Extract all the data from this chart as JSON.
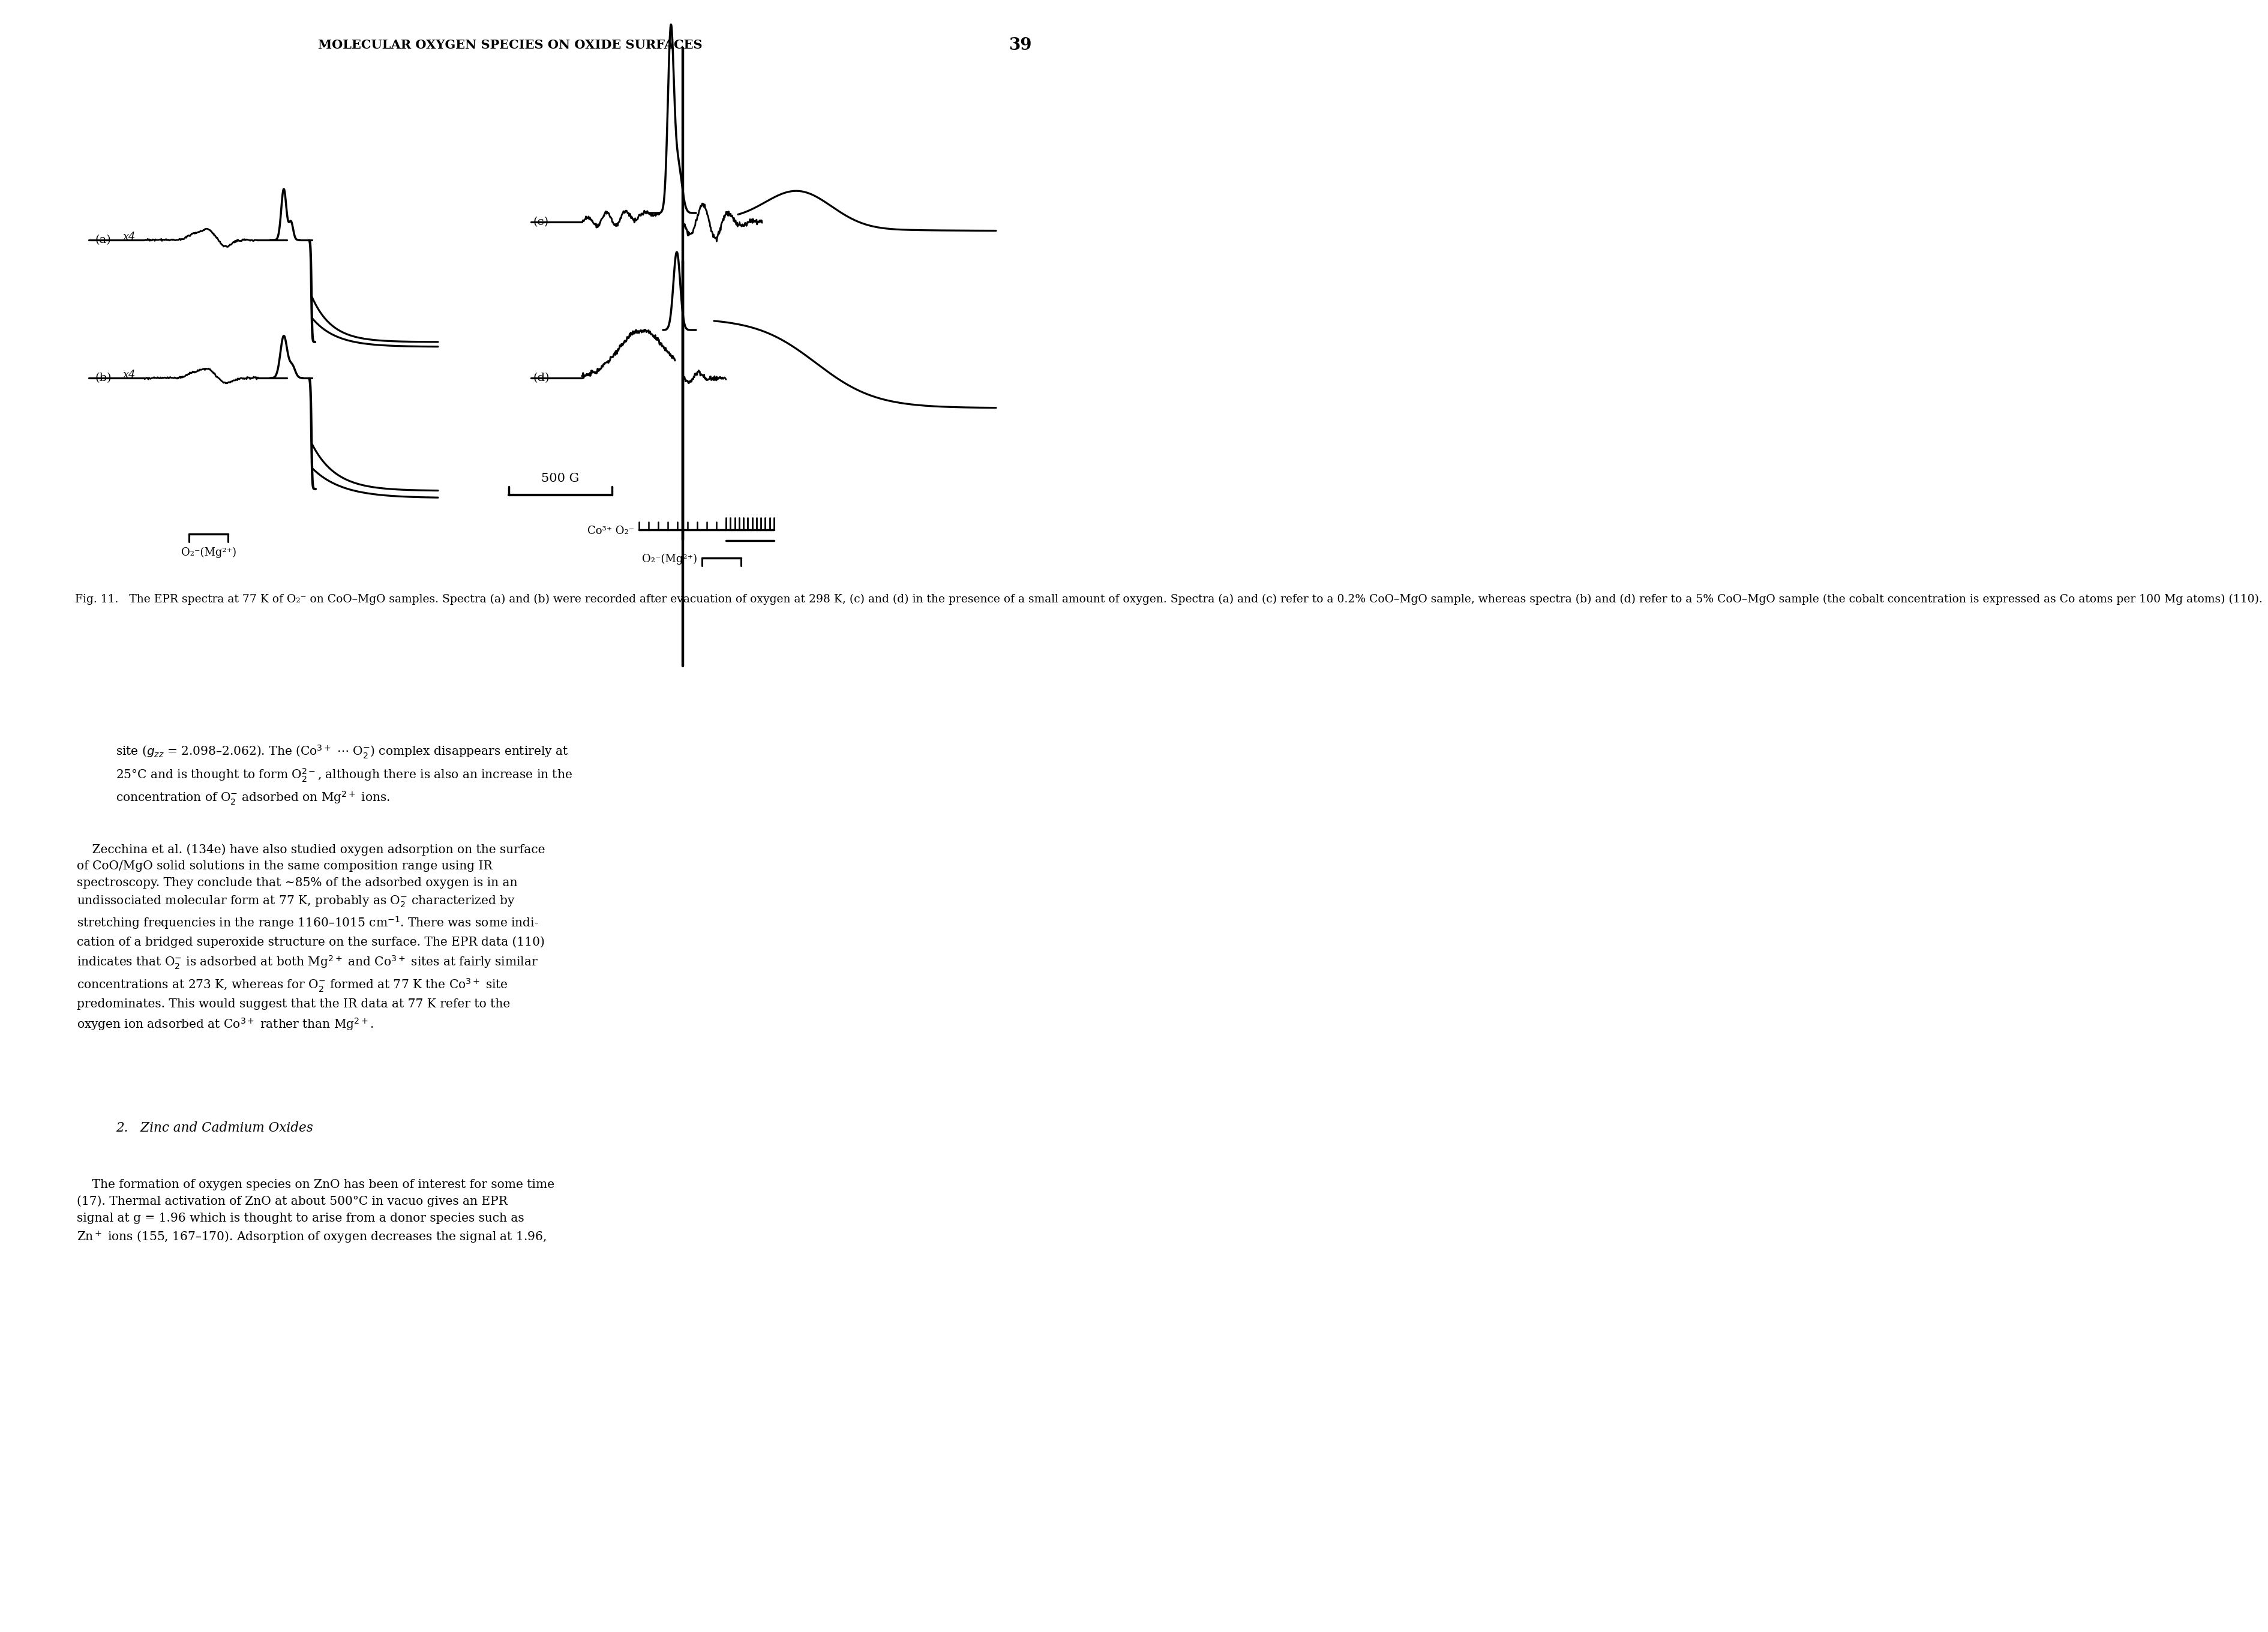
{
  "page_title": "MOLECULAR OXYGEN SPECIES ON OXIDE SURFACES",
  "page_number": "39",
  "fig_caption": "Fig. 11.   The EPR spectra at 77 K of O₂⁻ on CoO–MgO samples. Spectra (a) and (b) were recorded after evacuation of oxygen at 298 K, (c) and (d) in the presence of a small amount of oxygen. Spectra (a) and (c) refer to a 0.2% CoO–MgO sample, whereas spectra (b) and (d) refer to a 5% CoO–MgO sample (the cobalt concentration is expressed as Co atoms per 100 Mg atoms) (110).",
  "scale_bar_label": "500 G",
  "left_axis_label": "O₂⁻(Mg²⁺)",
  "right_axis_label1": "Co³⁺ O₂⁻",
  "right_axis_label2": "O₂⁻(Mg²⁺)",
  "label_a": "(a)",
  "label_b": "(b)",
  "label_c": "(c)",
  "label_d": "(d)",
  "x4": "x4",
  "background": "#ffffff",
  "ink": "#000000"
}
